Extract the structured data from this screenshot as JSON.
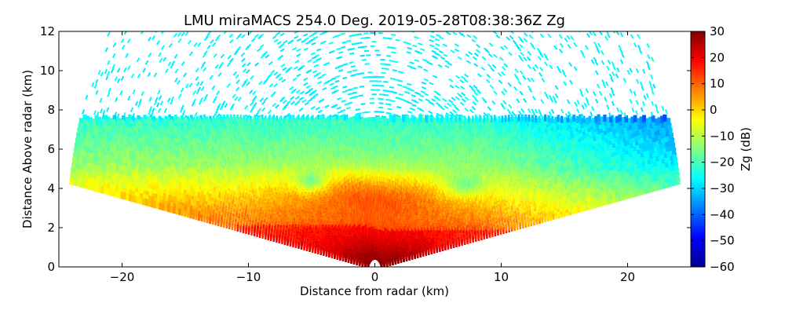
{
  "chart_data": {
    "type": "heatmap",
    "title": "LMU miraMACS 254.0 Deg. 2019-05-28T08:38:36Z  Zg",
    "xlabel": "Distance from radar (km)",
    "ylabel": "Distance Above radar  (km)",
    "xlim": [
      -25,
      25
    ],
    "ylim": [
      0,
      12
    ],
    "x_ticks": [
      -20,
      -10,
      0,
      10,
      20
    ],
    "x_tick_labels": [
      "−20",
      "−10",
      "0",
      "10",
      "20"
    ],
    "y_ticks": [
      0,
      2,
      4,
      6,
      8,
      10,
      12
    ],
    "y_tick_labels": [
      "0",
      "2",
      "4",
      "6",
      "8",
      "10",
      "12"
    ],
    "colorbar": {
      "label": "Zg (dB)",
      "range": [
        -60,
        30
      ],
      "ticks": [
        30,
        20,
        10,
        0,
        -10,
        -20,
        -30,
        -40,
        -50,
        -60
      ],
      "tick_labels": [
        "30",
        "20",
        "10",
        "0",
        "−10",
        "−20",
        "−30",
        "−40",
        "−50",
        "−60"
      ],
      "colormap": "jet"
    },
    "scan": {
      "elevation_span_deg": [
        10,
        170
      ],
      "max_range_km": 24.5
    },
    "regions": [
      {
        "name": "sparse noise aloft",
        "height_km": [
          7.5,
          12
        ],
        "value_db": -27
      },
      {
        "name": "upper cloud",
        "height_km": [
          5,
          7.5
        ],
        "value_db": -18
      },
      {
        "name": "mid cloud",
        "height_km": [
          2,
          5
        ],
        "value_db": -5
      },
      {
        "name": "rain shaft",
        "height_km": [
          0,
          2
        ],
        "value_db": 18
      }
    ]
  }
}
